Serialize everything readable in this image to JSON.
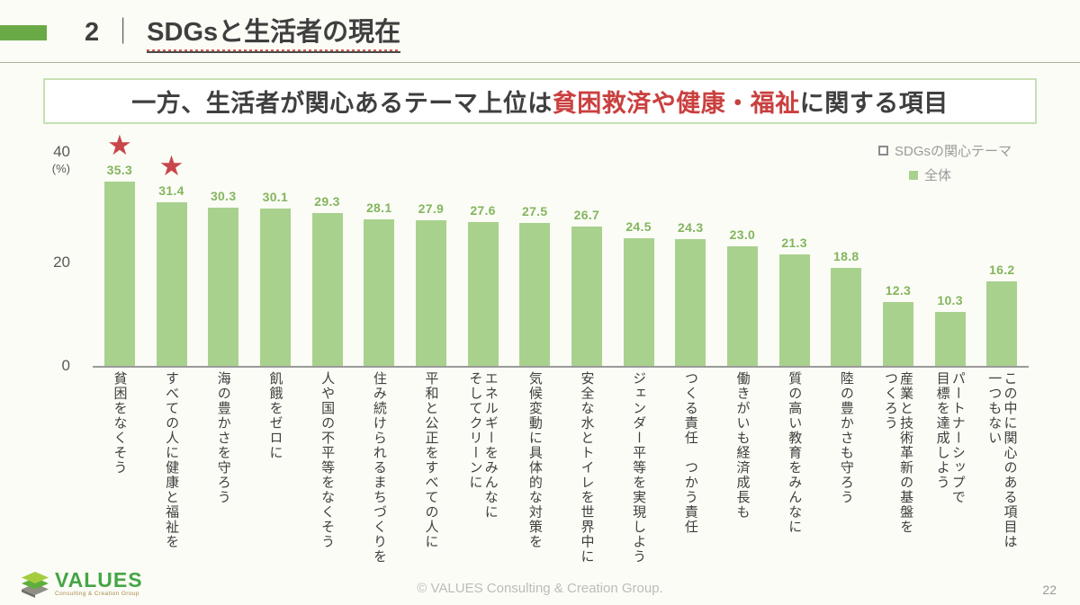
{
  "slide": {
    "header": {
      "number": "2",
      "separator": "｜",
      "title": "SDGsと生活者の現在"
    },
    "headline": {
      "pre": "一方、生活者が関心あるテーマ上位は",
      "highlight": "貧困救済や健康・福祉",
      "post": "に関する項目",
      "highlight_color": "#c9403f"
    }
  },
  "chart_data": {
    "type": "bar",
    "legend": [
      {
        "label": "SDGsの関心テーマ",
        "marker": "outline-square"
      },
      {
        "label": "全体",
        "marker": "filled-square",
        "color": "#a9d18e"
      }
    ],
    "unit_label": "(%)",
    "ylim": [
      0,
      40
    ],
    "ytick_labels": {
      "top": "40",
      "mid": "20",
      "zero": "0"
    },
    "categories": [
      "貧困をなくそう",
      "すべての人に健康と福祉を",
      "海の豊かさを守ろう",
      "飢餓をゼロに",
      "人や国の不平等をなくそう",
      "住み続けられるまちづくりを",
      "平和と公正をすべての人に",
      "エネルギーをみんなに\nそしてクリーンに",
      "気候変動に具体的な対策を",
      "安全な水とトイレを世界中に",
      "ジェンダー平等を実現しよう",
      "つくる責任　つかう責任",
      "働きがいも経済成長も",
      "質の高い教育をみんなに",
      "陸の豊かさも守ろう",
      "産業と技術革新の基盤を\nつくろう",
      "パートナーシップで\n目標を達成しよう",
      "この中に関心のある項目は\n一つもない"
    ],
    "values": [
      35.3,
      31.4,
      30.3,
      30.1,
      29.3,
      28.1,
      27.9,
      27.6,
      27.5,
      26.7,
      24.5,
      24.3,
      23.0,
      21.3,
      18.8,
      12.3,
      10.3,
      16.2
    ],
    "starred_indices": [
      0,
      1
    ],
    "grid": false,
    "legend_position": "top-right",
    "colors": {
      "bar": "#a9d18e",
      "value_label": "#84b55e",
      "star": "#c9464a",
      "axis": "#9a9a9a",
      "accent_green": "#6aaa46"
    }
  },
  "footer": {
    "logo_name": "VALUES",
    "logo_tagline": "Consulting & Creation Group",
    "copyright": "© VALUES Consulting & Creation Group.",
    "page_number": "22"
  }
}
